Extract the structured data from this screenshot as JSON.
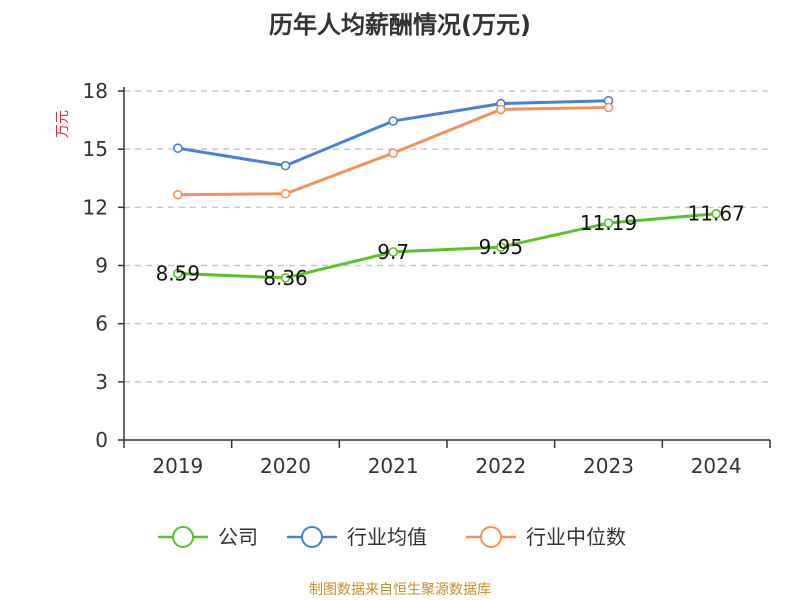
{
  "chart_data": {
    "type": "line",
    "title": "历年人均薪酬情况(万元)",
    "ylabel": "万元",
    "xlabel": "",
    "categories": [
      "2019",
      "2020",
      "2021",
      "2022",
      "2023",
      "2024"
    ],
    "ylim": [
      0,
      18
    ],
    "yticks": [
      0,
      3,
      6,
      9,
      12,
      15,
      18
    ],
    "grid": true,
    "legend_position": "bottom",
    "series": [
      {
        "name": "公司",
        "color": "#5cc12a",
        "values": [
          8.59,
          8.36,
          9.7,
          9.95,
          11.19,
          11.67
        ],
        "labels": [
          "8.59",
          "8.36",
          "9.7",
          "9.95",
          "11.19",
          "11.67"
        ]
      },
      {
        "name": "行业均值",
        "color": "#4a7fd6",
        "values": [
          15.05,
          14.15,
          16.45,
          17.35,
          17.5,
          null
        ]
      },
      {
        "name": "行业中位数",
        "color": "#f2925a",
        "values": [
          12.65,
          12.7,
          14.8,
          17.05,
          17.15,
          null
        ]
      }
    ],
    "source": "制图数据来自恒生聚源数据库"
  }
}
